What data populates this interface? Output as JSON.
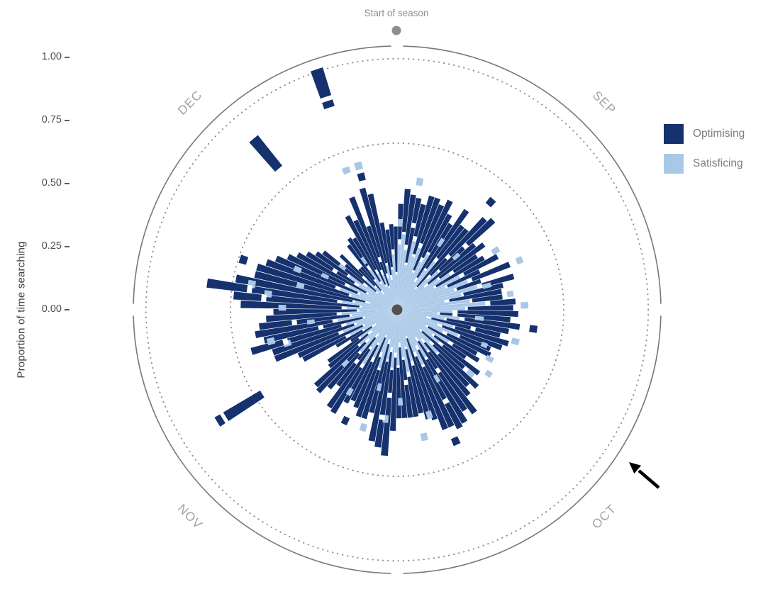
{
  "figure": {
    "annotation_start": "Start of season",
    "y_axis_label": "Proportion of time searching"
  },
  "legend": {
    "items": [
      {
        "label": "Optimising",
        "color": "#15316E"
      },
      {
        "label": "Satisficing",
        "color": "#A9C8E8"
      }
    ]
  },
  "chart_data": {
    "type": "polar_stacked_bar",
    "title": "",
    "ylabel": "Proportion of time searching",
    "radial_ticks": [
      "0.00",
      "0.25",
      "0.50",
      "0.75",
      "1.00"
    ],
    "radial_tick_values": [
      0,
      0.25,
      0.5,
      0.75,
      1
    ],
    "rlim": [
      0,
      1.05
    ],
    "dotted_gridlines": [
      0.66,
      0.995
    ],
    "start_marker_label": "Start of season",
    "months": [
      {
        "label": "SEP",
        "mid_angle": 45
      },
      {
        "label": "OCT",
        "mid_angle": 135
      },
      {
        "label": "NOV",
        "mid_angle": 225
      },
      {
        "label": "DEC",
        "mid_angle": 315
      }
    ],
    "series": [
      {
        "name": "Optimising",
        "color": "#15316E"
      },
      {
        "name": "Satisficing",
        "color": "#A9C8E8"
      }
    ],
    "arrow_annotation": true,
    "bars_format": "[angle_deg_clockwise_from_top, satisficing, gap, optimising]",
    "bars": [
      [
        2,
        0.26,
        0.02,
        0.14
      ],
      [
        5,
        0.3,
        0.01,
        0.17
      ],
      [
        8,
        0.24,
        0.02,
        0.2
      ],
      [
        11,
        0.18,
        0.01,
        0.26
      ],
      [
        14,
        0.28,
        0.02,
        0.13
      ],
      [
        17,
        0.22,
        0.01,
        0.24
      ],
      [
        20,
        0.26,
        0.02,
        0.19
      ],
      [
        23,
        0.16,
        0.01,
        0.28
      ],
      [
        26,
        0.21,
        0.02,
        0.25
      ],
      [
        29,
        0.25,
        0.01,
        0.17
      ],
      [
        32,
        0.13,
        0.02,
        0.25
      ],
      [
        35,
        0.19,
        0.01,
        0.28
      ],
      [
        38,
        0.24,
        0.02,
        0.16
      ],
      [
        41,
        0.11,
        0.01,
        0.3
      ],
      [
        44,
        0.17,
        0.02,
        0.31
      ],
      [
        47,
        0.22,
        0.01,
        0.29
      ],
      [
        50,
        0.14,
        0.02,
        0.24
      ],
      [
        53,
        0.2,
        0.01,
        0.22
      ],
      [
        56,
        0.25,
        0.02,
        0.11
      ],
      [
        59,
        0.17,
        0.01,
        0.22
      ],
      [
        62,
        0.28,
        0.02,
        0.15
      ],
      [
        65,
        0.21,
        0.01,
        0.14
      ],
      [
        68,
        0.3,
        0.02,
        0.16
      ],
      [
        71,
        0.24,
        0.01,
        0.1
      ],
      [
        74,
        0.33,
        0.02,
        0.13
      ],
      [
        77,
        0.26,
        0.01,
        0.16
      ],
      [
        80,
        0.19,
        0.02,
        0.21
      ],
      [
        83,
        0.29,
        0.01,
        0.12
      ],
      [
        86,
        0.35,
        0.02,
        0.1
      ],
      [
        89,
        0.27,
        0.01,
        0.18
      ],
      [
        92,
        0.22,
        0.02,
        0.24
      ],
      [
        95,
        0.16,
        0.01,
        0.28
      ],
      [
        98,
        0.25,
        0.02,
        0.22
      ],
      [
        101,
        0.19,
        0.01,
        0.25
      ],
      [
        104,
        0.12,
        0.02,
        0.28
      ],
      [
        107,
        0.23,
        0.01,
        0.22
      ],
      [
        110,
        0.17,
        0.02,
        0.25
      ],
      [
        113,
        0.26,
        0.01,
        0.13
      ],
      [
        116,
        0.2,
        0.02,
        0.19
      ],
      [
        119,
        0.13,
        0.01,
        0.22
      ],
      [
        122,
        0.24,
        0.02,
        0.12
      ],
      [
        125,
        0.17,
        0.01,
        0.15
      ],
      [
        128,
        0.21,
        0.02,
        0.18
      ],
      [
        131,
        0.12,
        0.01,
        0.22
      ],
      [
        134,
        0.18,
        0.02,
        0.24
      ],
      [
        137,
        0.23,
        0.01,
        0.17
      ],
      [
        140,
        0.15,
        0.02,
        0.27
      ],
      [
        143,
        0.2,
        0.01,
        0.3
      ],
      [
        146,
        0.13,
        0.02,
        0.33
      ],
      [
        149,
        0.22,
        0.01,
        0.29
      ],
      [
        152,
        0.16,
        0.02,
        0.35
      ],
      [
        155,
        0.24,
        0.01,
        0.26
      ],
      [
        158,
        0.18,
        0.02,
        0.31
      ],
      [
        161,
        0.11,
        0.01,
        0.34
      ],
      [
        164,
        0.21,
        0.02,
        0.22
      ],
      [
        167,
        0.15,
        0.01,
        0.26
      ],
      [
        170,
        0.25,
        0.02,
        0.16
      ],
      [
        173,
        0.19,
        0.01,
        0.23
      ],
      [
        176,
        0.13,
        0.02,
        0.28
      ],
      [
        179,
        0.22,
        0.01,
        0.2
      ],
      [
        182,
        0.17,
        0.02,
        0.29
      ],
      [
        185,
        0.23,
        0.01,
        0.34
      ],
      [
        188,
        0.15,
        0.02,
        0.38
      ],
      [
        191,
        0.2,
        0.01,
        0.32
      ],
      [
        194,
        0.12,
        0.02,
        0.28
      ],
      [
        197,
        0.24,
        0.01,
        0.2
      ],
      [
        200,
        0.18,
        0.02,
        0.25
      ],
      [
        203,
        0.11,
        0.01,
        0.3
      ],
      [
        206,
        0.21,
        0.02,
        0.17
      ],
      [
        209,
        0.15,
        0.01,
        0.26
      ],
      [
        212,
        0.25,
        0.02,
        0.21
      ],
      [
        215,
        0.18,
        0.01,
        0.28
      ],
      [
        218,
        0.12,
        0.02,
        0.24
      ],
      [
        221,
        0.22,
        0.01,
        0.18
      ],
      [
        224,
        0.16,
        0.02,
        0.27
      ],
      [
        227,
        0.2,
        0.01,
        0.23
      ],
      [
        230,
        0.13,
        0.02,
        0.2
      ],
      [
        233,
        0.18,
        0.01,
        0.15
      ],
      [
        236,
        0.1,
        0.02,
        0.1
      ],
      [
        239,
        0.15,
        0.01,
        0.12
      ],
      [
        242,
        0.21,
        0.02,
        0.19
      ],
      [
        245,
        0.14,
        0.01,
        0.28
      ],
      [
        248,
        0.23,
        0.02,
        0.27
      ],
      [
        251,
        0.17,
        0.01,
        0.34
      ],
      [
        254,
        0.21,
        0.02,
        0.37
      ],
      [
        257,
        0.13,
        0.01,
        0.4
      ],
      [
        260,
        0.24,
        0.02,
        0.31
      ],
      [
        263,
        0.18,
        0.01,
        0.36
      ],
      [
        266,
        0.22,
        0.02,
        0.28
      ],
      [
        269,
        0.15,
        0.01,
        0.33
      ],
      [
        272,
        0.2,
        0.02,
        0.4
      ],
      [
        275,
        0.14,
        0.01,
        0.5
      ],
      [
        278,
        0.22,
        0.02,
        0.52
      ],
      [
        281,
        0.17,
        0.01,
        0.47
      ],
      [
        284,
        0.11,
        0.02,
        0.45
      ],
      [
        287,
        0.19,
        0.01,
        0.38
      ],
      [
        290,
        0.24,
        0.02,
        0.29
      ],
      [
        293,
        0.16,
        0.01,
        0.35
      ],
      [
        296,
        0.21,
        0.02,
        0.25
      ],
      [
        299,
        0.13,
        0.01,
        0.31
      ],
      [
        302,
        0.18,
        0.02,
        0.22
      ],
      [
        305,
        0.23,
        0.01,
        0.15
      ],
      [
        308,
        0.15,
        0.02,
        0.2
      ],
      [
        311,
        0.1,
        0.01,
        0.16
      ],
      [
        314,
        0.17,
        0.02,
        0.12
      ],
      [
        317,
        0.12,
        0.01,
        0.09
      ],
      [
        320,
        0.08,
        0.02,
        0.12
      ],
      [
        323,
        0.14,
        0.01,
        0.17
      ],
      [
        326,
        0.19,
        0.02,
        0.13
      ],
      [
        329,
        0.12,
        0.01,
        0.2
      ],
      [
        332,
        0.16,
        0.02,
        0.24
      ],
      [
        335,
        0.1,
        0.01,
        0.28
      ],
      [
        338,
        0.15,
        0.02,
        0.31
      ],
      [
        341,
        0.09,
        0.01,
        0.25
      ],
      [
        344,
        0.13,
        0.02,
        0.35
      ],
      [
        347,
        0.18,
        0.01,
        0.28
      ],
      [
        350,
        0.12,
        0.02,
        0.21
      ],
      [
        353,
        0.16,
        0.01,
        0.15
      ],
      [
        356,
        0.22,
        0.02,
        0.1
      ],
      [
        359,
        0.14,
        0.01,
        0.18
      ]
    ],
    "fragments_format": "[angle_deg, r_inner, r_outer, type S|O]",
    "fragments": [
      [
        341.5,
        0.89,
        1.005,
        "O"
      ],
      [
        341.5,
        0.845,
        0.872,
        "O"
      ],
      [
        320,
        0.73,
        0.885,
        "O"
      ],
      [
        238,
        0.63,
        0.8,
        "O"
      ],
      [
        238,
        0.815,
        0.84,
        "O"
      ],
      [
        288,
        0.625,
        0.655,
        "O"
      ],
      [
        41,
        0.55,
        0.58,
        "O"
      ],
      [
        205,
        0.47,
        0.5,
        "O"
      ],
      [
        98,
        0.53,
        0.56,
        "O"
      ],
      [
        156,
        0.555,
        0.585,
        "O"
      ],
      [
        345,
        0.53,
        0.56,
        "O"
      ],
      [
        345,
        0.575,
        0.605,
        "S"
      ],
      [
        2,
        0.33,
        0.36,
        "S"
      ],
      [
        10,
        0.5,
        0.53,
        "S"
      ],
      [
        33,
        0.3,
        0.335,
        "S"
      ],
      [
        48,
        0.3,
        0.33,
        "S"
      ],
      [
        59,
        0.44,
        0.47,
        "S"
      ],
      [
        68,
        0.51,
        0.535,
        "S"
      ],
      [
        75,
        0.35,
        0.385,
        "S"
      ],
      [
        82,
        0.44,
        0.465,
        "S"
      ],
      [
        88,
        0.49,
        0.52,
        "S"
      ],
      [
        96,
        0.31,
        0.345,
        "S"
      ],
      [
        105,
        0.47,
        0.5,
        "S"
      ],
      [
        112,
        0.36,
        0.385,
        "S"
      ],
      [
        118,
        0.4,
        0.43,
        "S"
      ],
      [
        125,
        0.43,
        0.455,
        "S"
      ],
      [
        131,
        0.37,
        0.4,
        "S"
      ],
      [
        150,
        0.3,
        0.33,
        "S"
      ],
      [
        163,
        0.42,
        0.45,
        "S"
      ],
      [
        168,
        0.5,
        0.53,
        "S"
      ],
      [
        178,
        0.35,
        0.38,
        "S"
      ],
      [
        186,
        0.42,
        0.45,
        "S"
      ],
      [
        193,
        0.3,
        0.33,
        "S"
      ],
      [
        196,
        0.47,
        0.5,
        "S"
      ],
      [
        210,
        0.36,
        0.39,
        "S"
      ],
      [
        224,
        0.28,
        0.31,
        "S"
      ],
      [
        253,
        0.44,
        0.47,
        "S"
      ],
      [
        256,
        0.5,
        0.53,
        "S"
      ],
      [
        262,
        0.33,
        0.36,
        "S"
      ],
      [
        271,
        0.44,
        0.47,
        "S"
      ],
      [
        277,
        0.5,
        0.53,
        "S"
      ],
      [
        280,
        0.57,
        0.6,
        "S"
      ],
      [
        284,
        0.38,
        0.41,
        "S"
      ],
      [
        292,
        0.41,
        0.44,
        "S"
      ],
      [
        295,
        0.3,
        0.33,
        "S"
      ],
      [
        308,
        0.26,
        0.29,
        "S"
      ],
      [
        326,
        0.22,
        0.25,
        "S"
      ],
      [
        340,
        0.575,
        0.6,
        "S"
      ]
    ],
    "notches": [
      [
        278,
        0.58,
        0.6
      ],
      [
        254,
        0.45,
        0.47
      ],
      [
        188,
        0.42,
        0.44
      ],
      [
        47,
        0.36,
        0.38
      ],
      [
        152,
        0.4,
        0.42
      ],
      [
        263,
        0.4,
        0.42
      ],
      [
        11,
        0.33,
        0.35
      ],
      [
        104,
        0.3,
        0.32
      ],
      [
        341,
        0.2,
        0.22
      ],
      [
        275,
        0.52,
        0.54
      ],
      [
        257,
        0.3,
        0.32
      ],
      [
        185,
        0.33,
        0.35
      ],
      [
        146,
        0.28,
        0.3
      ],
      [
        44,
        0.28,
        0.3
      ],
      [
        95,
        0.22,
        0.24
      ],
      [
        302,
        0.28,
        0.3
      ],
      [
        218,
        0.25,
        0.27
      ],
      [
        173,
        0.28,
        0.3
      ]
    ]
  }
}
